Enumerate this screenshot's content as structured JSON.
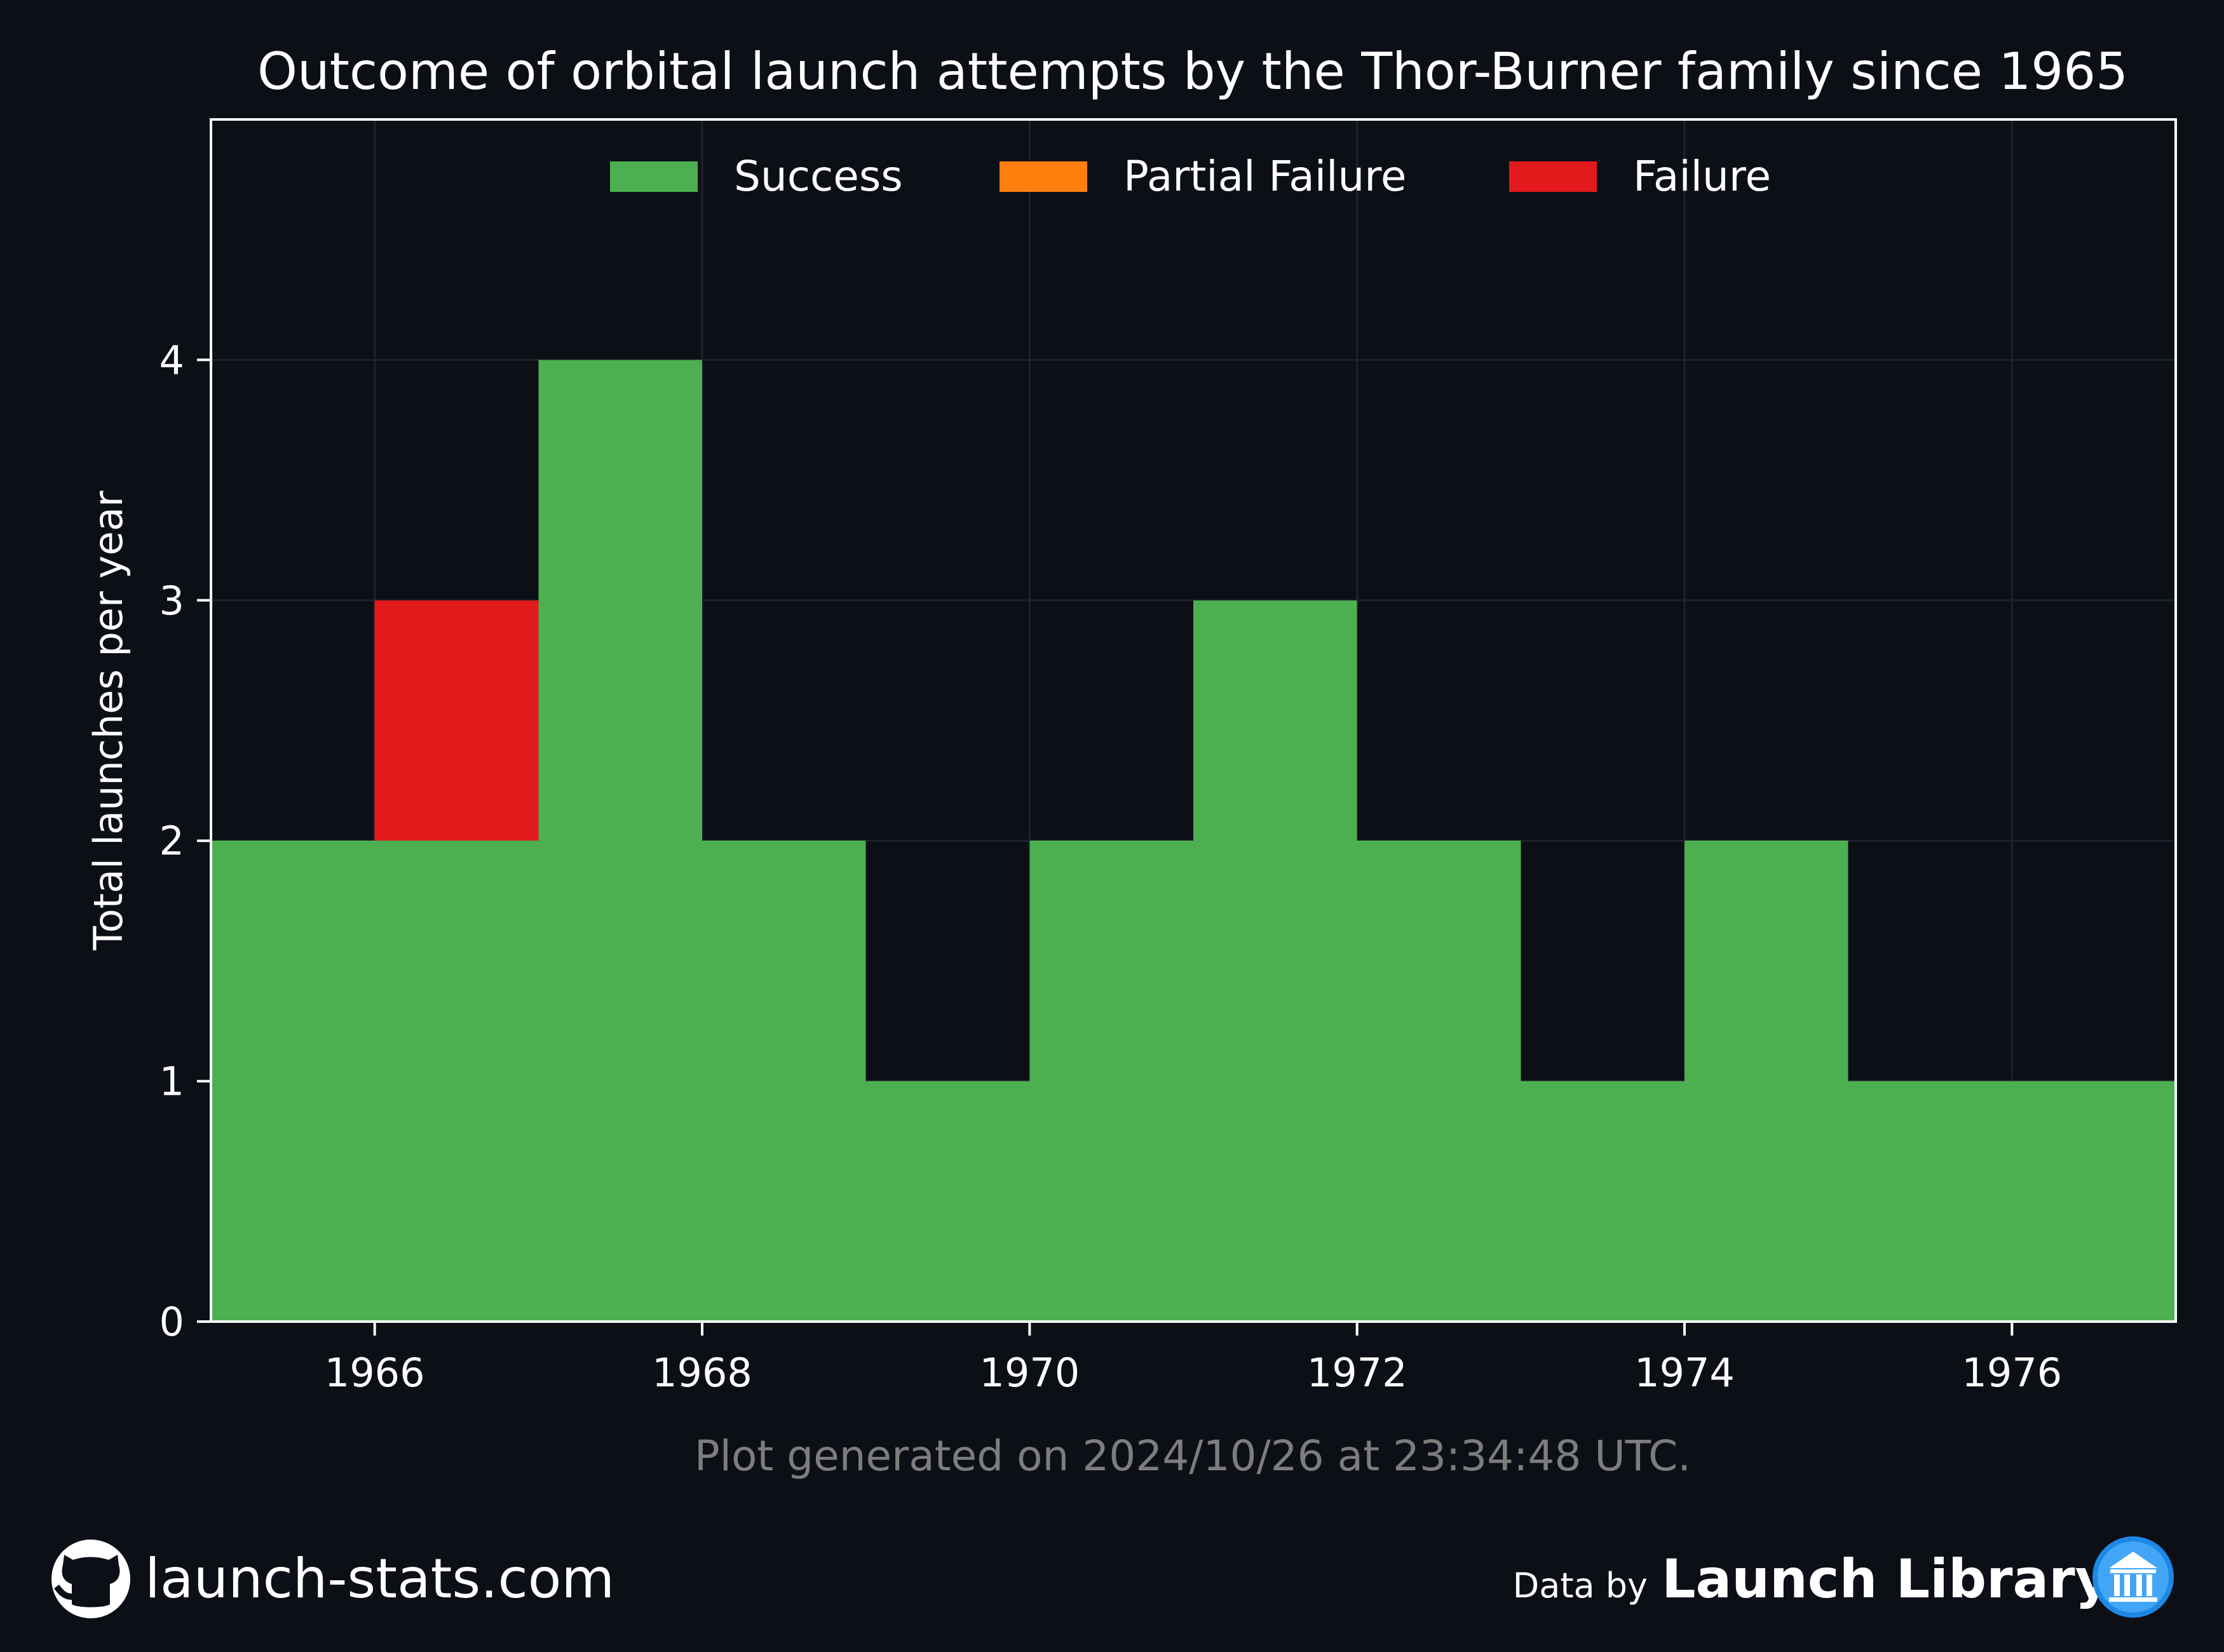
{
  "chart_data": {
    "type": "bar",
    "stacked": true,
    "title": "Outcome of orbital launch attempts by the Thor-Burner family since 1965",
    "ylabel": "Total launches per year",
    "xlabel": "",
    "categories": [
      1965,
      1966,
      1967,
      1968,
      1969,
      1970,
      1971,
      1972,
      1973,
      1974,
      1975,
      1976
    ],
    "x_ticks": [
      "1966",
      "1968",
      "1970",
      "1972",
      "1974",
      "1976"
    ],
    "x_tick_values": [
      1966,
      1968,
      1970,
      1972,
      1974,
      1976
    ],
    "y_ticks": [
      "0",
      "1",
      "2",
      "3",
      "4"
    ],
    "y_tick_values": [
      0,
      1,
      2,
      3,
      4
    ],
    "xlim": [
      1965,
      1977
    ],
    "ylim": [
      0,
      5
    ],
    "grid": true,
    "legend_position": "top-center",
    "series": [
      {
        "name": "Success",
        "color": "#4caf50",
        "values": [
          2,
          2,
          4,
          2,
          1,
          2,
          3,
          2,
          1,
          2,
          1,
          1
        ]
      },
      {
        "name": "Partial Failure",
        "color": "#ff7f0e",
        "values": [
          0,
          0,
          0,
          0,
          0,
          0,
          0,
          0,
          0,
          0,
          0,
          0
        ]
      },
      {
        "name": "Failure",
        "color": "#e31a1c",
        "values": [
          0,
          1,
          0,
          0,
          0,
          0,
          0,
          0,
          0,
          0,
          0,
          0
        ]
      }
    ]
  },
  "footer": {
    "generated": "Plot generated on 2024/10/26 at 23:34:48 UTC.",
    "site": "launch-stats.com",
    "data_by_prefix": "Data by",
    "data_by_name": "Launch Library 2",
    "github_icon": "github-icon",
    "library_icon": "library-icon"
  },
  "colors": {
    "background": "#0c0f16",
    "grid": "#1e222a",
    "frame": "#ffffff"
  }
}
